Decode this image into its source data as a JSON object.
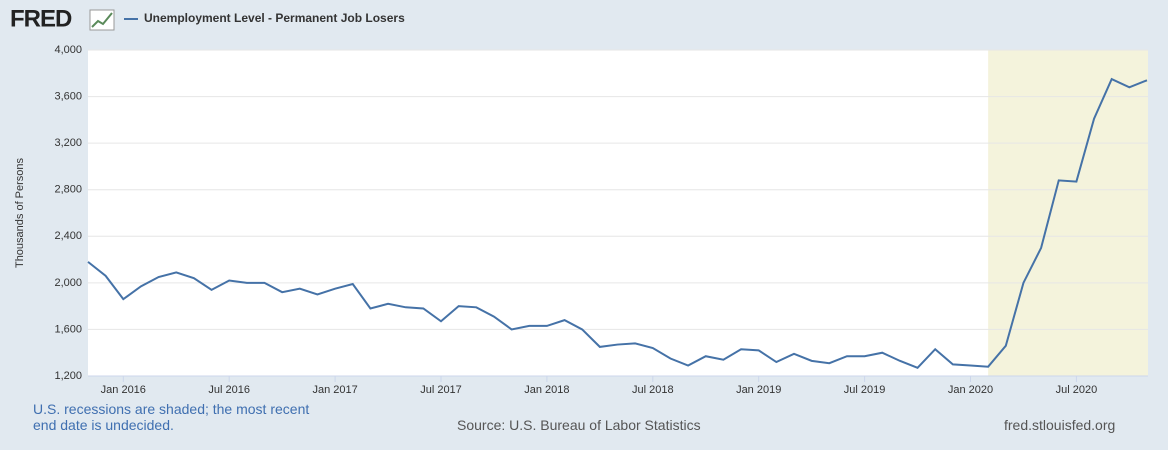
{
  "header": {
    "logo": "FRED"
  },
  "chart_data": {
    "type": "line",
    "title": "Unemployment Level - Permanent Job Losers",
    "y_label": "Thousands of Persons",
    "x": [
      "2015-11",
      "2015-12",
      "2016-01",
      "2016-02",
      "2016-03",
      "2016-04",
      "2016-05",
      "2016-06",
      "2016-07",
      "2016-08",
      "2016-09",
      "2016-10",
      "2016-11",
      "2016-12",
      "2017-01",
      "2017-02",
      "2017-03",
      "2017-04",
      "2017-05",
      "2017-06",
      "2017-07",
      "2017-08",
      "2017-09",
      "2017-10",
      "2017-11",
      "2017-12",
      "2018-01",
      "2018-02",
      "2018-03",
      "2018-04",
      "2018-05",
      "2018-06",
      "2018-07",
      "2018-08",
      "2018-09",
      "2018-10",
      "2018-11",
      "2018-12",
      "2019-01",
      "2019-02",
      "2019-03",
      "2019-04",
      "2019-05",
      "2019-06",
      "2019-07",
      "2019-08",
      "2019-09",
      "2019-10",
      "2019-11",
      "2019-12",
      "2020-01",
      "2020-02",
      "2020-03",
      "2020-04",
      "2020-05",
      "2020-06",
      "2020-07",
      "2020-08",
      "2020-09",
      "2020-10",
      "2020-11"
    ],
    "series": [
      {
        "name": "Unemployment Level - Permanent Job Losers",
        "color": "#4572a7",
        "values": [
          2180,
          2060,
          1860,
          1970,
          2050,
          2090,
          2040,
          1940,
          2020,
          2000,
          2000,
          1920,
          1950,
          1900,
          1950,
          1990,
          1780,
          1820,
          1790,
          1780,
          1670,
          1800,
          1790,
          1710,
          1600,
          1630,
          1630,
          1680,
          1600,
          1450,
          1470,
          1480,
          1440,
          1350,
          1290,
          1370,
          1340,
          1430,
          1420,
          1320,
          1390,
          1330,
          1310,
          1370,
          1370,
          1400,
          1330,
          1270,
          1430,
          1300,
          1290,
          1280,
          1460,
          2000,
          2300,
          2880,
          2870,
          3410,
          3750,
          3680,
          3740
        ]
      }
    ],
    "xticks": [
      {
        "value": "2016-01",
        "label": "Jan 2016"
      },
      {
        "value": "2016-07",
        "label": "Jul 2016"
      },
      {
        "value": "2017-01",
        "label": "Jan 2017"
      },
      {
        "value": "2017-07",
        "label": "Jul 2017"
      },
      {
        "value": "2018-01",
        "label": "Jan 2018"
      },
      {
        "value": "2018-07",
        "label": "Jul 2018"
      },
      {
        "value": "2019-01",
        "label": "Jan 2019"
      },
      {
        "value": "2019-07",
        "label": "Jul 2019"
      },
      {
        "value": "2020-01",
        "label": "Jan 2020"
      },
      {
        "value": "2020-07",
        "label": "Jul 2020"
      }
    ],
    "ylim": [
      1200,
      4000
    ],
    "yticks": [
      {
        "value": 1200,
        "label": "1,200"
      },
      {
        "value": 1600,
        "label": "1,600"
      },
      {
        "value": 2000,
        "label": "2,000"
      },
      {
        "value": 2400,
        "label": "2,400"
      },
      {
        "value": 2800,
        "label": "2,800"
      },
      {
        "value": 3200,
        "label": "3,200"
      },
      {
        "value": 3600,
        "label": "3,600"
      },
      {
        "value": 4000,
        "label": "4,000"
      }
    ],
    "grid": true,
    "recessions": [
      {
        "start": "2020-02",
        "end": "2020-11",
        "color": "#f4f3dc"
      }
    ]
  },
  "footer": {
    "note": "U.S. recessions are shaded; the most recent end date is undecided.",
    "source": "Source: U.S. Bureau of Labor Statistics",
    "site": "fred.stlouisfed.org"
  }
}
